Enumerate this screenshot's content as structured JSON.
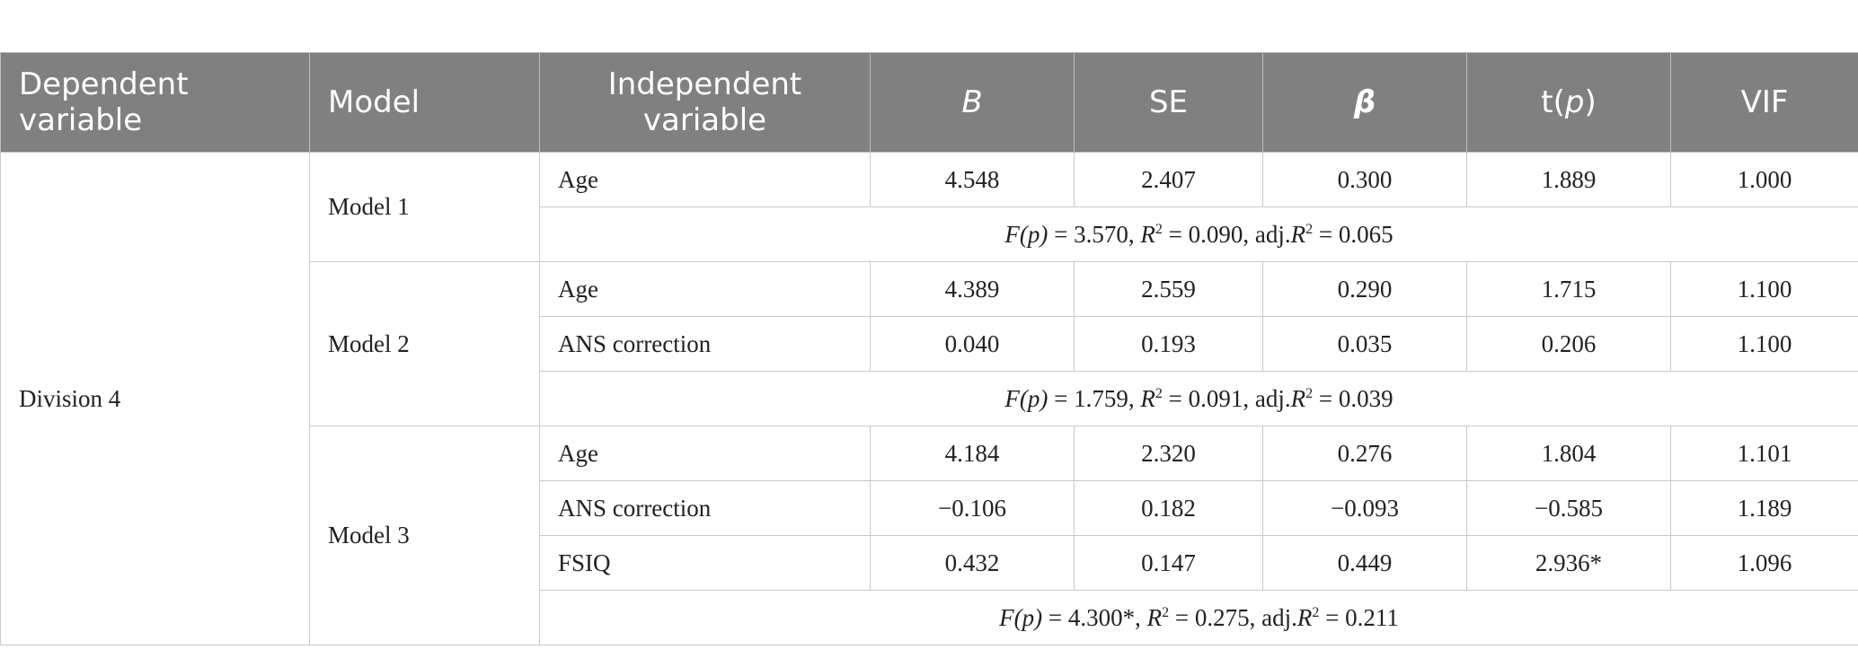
{
  "table": {
    "headers": [
      "Dependent variable",
      "Model",
      "Independent variable",
      "B",
      "SE",
      "β",
      "t(p)",
      "VIF"
    ],
    "dependent_variable": "Division 4",
    "models": [
      {
        "name": "Model 1",
        "rows": [
          {
            "var": "Age",
            "B": "4.548",
            "SE": "2.407",
            "beta": "0.300",
            "t": "1.889",
            "VIF": "1.000"
          }
        ],
        "summary": {
          "F_label": "F(p)",
          "F": "3.570",
          "R2": "0.090",
          "adjR2": "0.065"
        }
      },
      {
        "name": "Model 2",
        "rows": [
          {
            "var": "Age",
            "B": "4.389",
            "SE": "2.559",
            "beta": "0.290",
            "t": "1.715",
            "VIF": "1.100"
          },
          {
            "var": "ANS correction",
            "B": "0.040",
            "SE": "0.193",
            "beta": "0.035",
            "t": "0.206",
            "VIF": "1.100"
          }
        ],
        "summary": {
          "F_label": "F(p)",
          "F": "1.759",
          "R2": "0.091",
          "adjR2": "0.039"
        }
      },
      {
        "name": "Model 3",
        "rows": [
          {
            "var": "Age",
            "B": "4.184",
            "SE": "2.320",
            "beta": "0.276",
            "t": "1.804",
            "VIF": "1.101"
          },
          {
            "var": "ANS correction",
            "B": "−0.106",
            "SE": "0.182",
            "beta": "−0.093",
            "t": "−0.585",
            "VIF": "1.189"
          },
          {
            "var": "FSIQ",
            "B": "0.432",
            "SE": "0.147",
            "beta": "0.449",
            "t": "2.936*",
            "VIF": "1.096"
          }
        ],
        "summary": {
          "F_label": "F(p)",
          "F": "4.300*",
          "R2": "0.275",
          "adjR2": "0.211"
        }
      }
    ]
  }
}
